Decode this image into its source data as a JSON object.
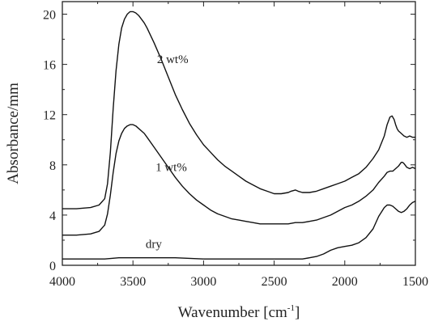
{
  "chart_data": {
    "type": "line",
    "xlabel": "Wavenumber [cm",
    "xlabel_sup": "-1",
    "xlabel_end": "]",
    "ylabel": "Absorbance/mm",
    "xlim": [
      4000,
      1500
    ],
    "ylim": [
      0,
      21
    ],
    "x_reversed": true,
    "xticks": [
      4000,
      3500,
      3000,
      2500,
      2000,
      1500
    ],
    "yticks": [
      0,
      4,
      8,
      12,
      16,
      20
    ],
    "xtick_labels": [
      "4000",
      "3500",
      "3000",
      "2500",
      "2000",
      "1500"
    ],
    "ytick_labels": [
      "0",
      "4",
      "8",
      "12",
      "16",
      "20"
    ],
    "grid": false,
    "line_color": "#111111",
    "series": [
      {
        "label": "2 wt%",
        "x": [
          4000,
          3900,
          3800,
          3740,
          3700,
          3680,
          3660,
          3640,
          3620,
          3600,
          3580,
          3560,
          3540,
          3520,
          3500,
          3480,
          3460,
          3440,
          3420,
          3400,
          3350,
          3300,
          3250,
          3200,
          3150,
          3100,
          3050,
          3000,
          2950,
          2900,
          2850,
          2800,
          2750,
          2700,
          2650,
          2600,
          2550,
          2500,
          2450,
          2400,
          2380,
          2350,
          2330,
          2300,
          2250,
          2200,
          2150,
          2100,
          2050,
          2000,
          1950,
          1900,
          1850,
          1800,
          1760,
          1720,
          1700,
          1680,
          1665,
          1650,
          1640,
          1630,
          1620,
          1600,
          1580,
          1560,
          1540,
          1520,
          1500
        ],
        "y": [
          4.5,
          4.5,
          4.6,
          4.8,
          5.3,
          6.5,
          9.0,
          12.5,
          15.5,
          17.6,
          18.9,
          19.6,
          20.0,
          20.2,
          20.2,
          20.1,
          19.9,
          19.6,
          19.3,
          18.9,
          17.7,
          16.4,
          15.0,
          13.6,
          12.4,
          11.3,
          10.4,
          9.6,
          9.0,
          8.4,
          7.9,
          7.5,
          7.1,
          6.7,
          6.4,
          6.1,
          5.9,
          5.7,
          5.7,
          5.8,
          5.9,
          6.0,
          5.9,
          5.8,
          5.8,
          5.9,
          6.1,
          6.3,
          6.5,
          6.7,
          7.0,
          7.3,
          7.8,
          8.5,
          9.2,
          10.3,
          11.2,
          11.8,
          11.9,
          11.6,
          11.2,
          10.9,
          10.7,
          10.5,
          10.3,
          10.2,
          10.3,
          10.2,
          10.2
        ]
      },
      {
        "label": "1 wt%",
        "x": [
          4000,
          3900,
          3800,
          3740,
          3700,
          3680,
          3660,
          3640,
          3620,
          3600,
          3580,
          3560,
          3540,
          3520,
          3500,
          3480,
          3460,
          3440,
          3420,
          3400,
          3350,
          3300,
          3250,
          3200,
          3150,
          3100,
          3050,
          3000,
          2950,
          2900,
          2850,
          2800,
          2750,
          2700,
          2650,
          2600,
          2550,
          2500,
          2450,
          2400,
          2350,
          2300,
          2250,
          2200,
          2150,
          2100,
          2050,
          2000,
          1950,
          1900,
          1850,
          1800,
          1760,
          1720,
          1700,
          1680,
          1660,
          1640,
          1620,
          1600,
          1590,
          1580,
          1560,
          1540,
          1520,
          1500
        ],
        "y": [
          2.4,
          2.4,
          2.5,
          2.7,
          3.2,
          4.1,
          5.6,
          7.4,
          8.9,
          9.9,
          10.5,
          10.9,
          11.1,
          11.2,
          11.2,
          11.1,
          10.9,
          10.7,
          10.5,
          10.2,
          9.4,
          8.6,
          7.8,
          7.0,
          6.3,
          5.7,
          5.2,
          4.8,
          4.4,
          4.1,
          3.9,
          3.7,
          3.6,
          3.5,
          3.4,
          3.3,
          3.3,
          3.3,
          3.3,
          3.3,
          3.4,
          3.4,
          3.5,
          3.6,
          3.8,
          4.0,
          4.3,
          4.6,
          4.8,
          5.1,
          5.5,
          6.0,
          6.6,
          7.1,
          7.4,
          7.5,
          7.5,
          7.7,
          7.9,
          8.2,
          8.2,
          8.1,
          7.8,
          7.7,
          7.8,
          7.7
        ]
      },
      {
        "label": "dry",
        "x": [
          4000,
          3800,
          3700,
          3600,
          3500,
          3400,
          3300,
          3200,
          3000,
          2800,
          2600,
          2400,
          2300,
          2250,
          2200,
          2150,
          2100,
          2050,
          2000,
          1950,
          1900,
          1850,
          1800,
          1760,
          1720,
          1700,
          1680,
          1660,
          1640,
          1620,
          1600,
          1580,
          1560,
          1540,
          1520,
          1500
        ],
        "y": [
          0.5,
          0.5,
          0.5,
          0.6,
          0.6,
          0.6,
          0.6,
          0.6,
          0.5,
          0.5,
          0.5,
          0.5,
          0.5,
          0.6,
          0.7,
          0.9,
          1.2,
          1.4,
          1.5,
          1.6,
          1.8,
          2.2,
          2.9,
          3.9,
          4.6,
          4.8,
          4.8,
          4.7,
          4.5,
          4.3,
          4.2,
          4.3,
          4.5,
          4.8,
          5.0,
          5.1
        ]
      }
    ],
    "annotations": [
      {
        "text": "2 wt%",
        "x": 3330,
        "y": 16.1
      },
      {
        "text": "1 wt%",
        "x": 3340,
        "y": 7.5
      },
      {
        "text": "dry",
        "x": 3410,
        "y": 1.4
      }
    ]
  }
}
